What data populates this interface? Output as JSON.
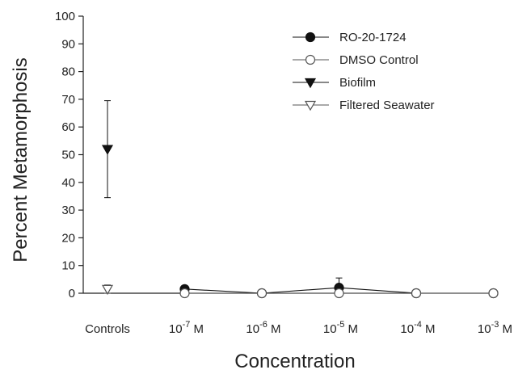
{
  "chart_data": {
    "type": "line",
    "title": "",
    "xlabel": "Concentration",
    "ylabel": "Percent Metamorphosis",
    "ylim": [
      0,
      100
    ],
    "yticks": [
      "0",
      "10",
      "20",
      "30",
      "40",
      "50",
      "60",
      "70",
      "80",
      "90",
      "100"
    ],
    "categories": [
      {
        "label": "Controls"
      },
      {
        "base": "10",
        "exp": "-7",
        "unit": "M"
      },
      {
        "base": "10",
        "exp": "-6",
        "unit": "M"
      },
      {
        "base": "10",
        "exp": "-5",
        "unit": "M"
      },
      {
        "base": "10",
        "exp": "-4",
        "unit": "M"
      },
      {
        "base": "10",
        "exp": "-3",
        "unit": "M"
      }
    ],
    "legend_position": "top-right",
    "grid": false,
    "series": [
      {
        "name": "RO-20-1724",
        "marker": "circle-filled",
        "color": "#111111",
        "values": [
          null,
          1.5,
          0,
          2,
          0,
          0
        ],
        "errors": [
          null,
          1,
          0,
          3.5,
          0,
          0
        ],
        "connect": true
      },
      {
        "name": "DMSO Control",
        "marker": "circle-open",
        "color": "#555555",
        "values": [
          null,
          0,
          0,
          0,
          0,
          0
        ],
        "errors": [
          null,
          0,
          0,
          0,
          0,
          0
        ],
        "connect": true
      },
      {
        "name": "Biofilm",
        "marker": "triangle-down-filled",
        "color": "#111111",
        "values": [
          52,
          null,
          null,
          null,
          null,
          null
        ],
        "errors": [
          17.5,
          null,
          null,
          null,
          null,
          null
        ],
        "connect": false
      },
      {
        "name": "Filtered Seawater",
        "marker": "triangle-down-open",
        "color": "#555555",
        "values": [
          1.5,
          null,
          null,
          null,
          null,
          null
        ],
        "errors": [
          1.5,
          null,
          null,
          null,
          null,
          null
        ],
        "connect": false
      }
    ]
  }
}
